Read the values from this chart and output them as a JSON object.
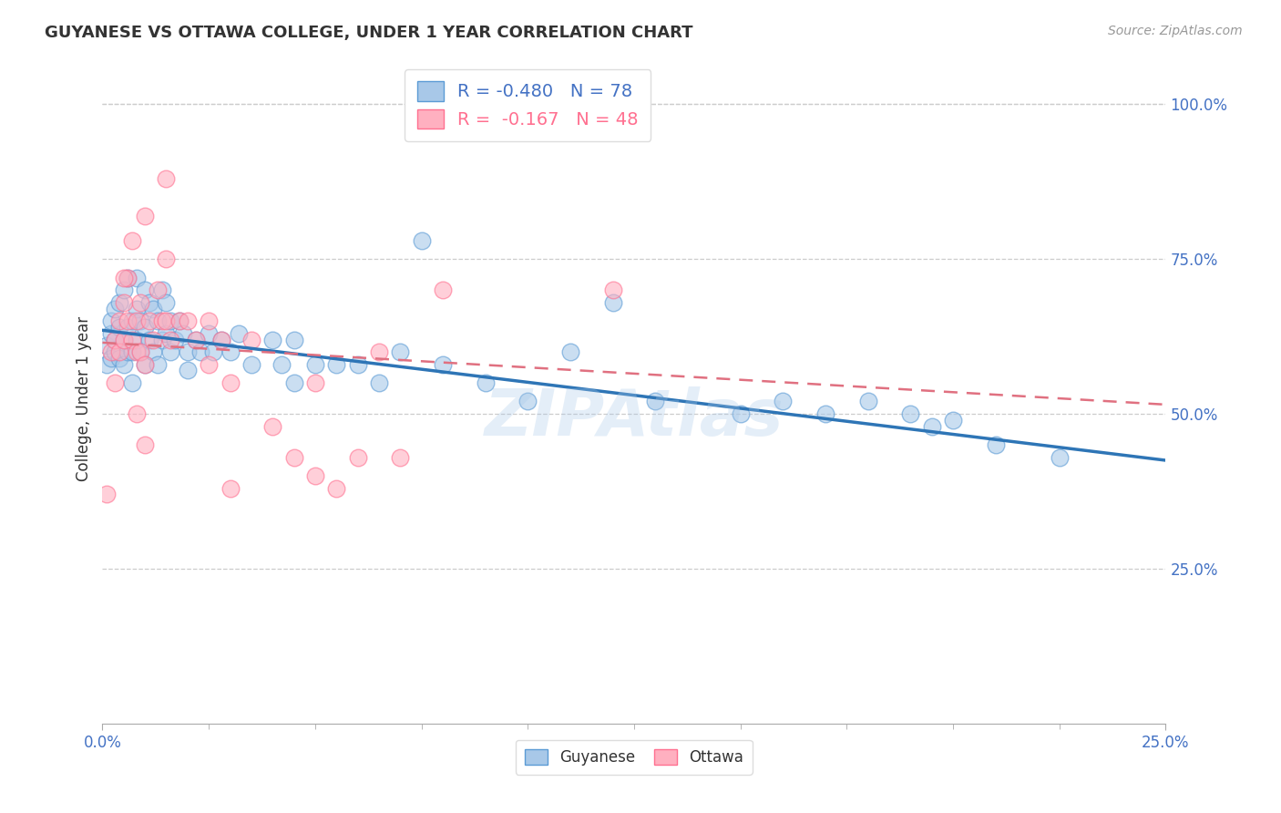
{
  "title": "GUYANESE VS OTTAWA COLLEGE, UNDER 1 YEAR CORRELATION CHART",
  "source": "Source: ZipAtlas.com",
  "ylabel": "College, Under 1 year",
  "legend_label1": "Guyanese",
  "legend_label2": "Ottawa",
  "R1": -0.48,
  "N1": 78,
  "R2": -0.167,
  "N2": 48,
  "color_blue": "#A8C8E8",
  "color_pink": "#FFB0C0",
  "color_blue_edge": "#5B9BD5",
  "color_pink_edge": "#FF7090",
  "color_blue_line": "#2E75B6",
  "color_pink_line": "#E07080",
  "xlim": [
    0.0,
    0.25
  ],
  "ylim": [
    0.0,
    1.05
  ],
  "xtick_left": 0.0,
  "xtick_right": 0.25,
  "xtick_left_label": "0.0%",
  "xtick_right_label": "25.0%",
  "yticks_right": [
    0.25,
    0.5,
    0.75,
    1.0
  ],
  "ytick_labels_right": [
    "25.0%",
    "50.0%",
    "75.0%",
    "100.0%"
  ],
  "background_color": "#FFFFFF",
  "grid_color": "#CCCCCC",
  "watermark": "ZIPAtlas",
  "title_color": "#333333",
  "source_color": "#999999",
  "axis_label_color": "#333333",
  "right_tick_color": "#4472C4",
  "line1_x0": 0.0,
  "line1_x1": 0.25,
  "line1_y0": 0.635,
  "line1_y1": 0.425,
  "line2_x0": 0.0,
  "line2_x1": 0.25,
  "line2_y0": 0.615,
  "line2_y1": 0.515,
  "blue_scatter_x": [
    0.001,
    0.001,
    0.002,
    0.002,
    0.002,
    0.003,
    0.003,
    0.003,
    0.004,
    0.004,
    0.004,
    0.005,
    0.005,
    0.005,
    0.006,
    0.006,
    0.006,
    0.007,
    0.007,
    0.007,
    0.008,
    0.008,
    0.008,
    0.009,
    0.009,
    0.01,
    0.01,
    0.01,
    0.011,
    0.011,
    0.012,
    0.012,
    0.013,
    0.013,
    0.014,
    0.014,
    0.015,
    0.015,
    0.016,
    0.016,
    0.017,
    0.018,
    0.019,
    0.02,
    0.02,
    0.022,
    0.023,
    0.025,
    0.026,
    0.028,
    0.03,
    0.032,
    0.035,
    0.04,
    0.042,
    0.045,
    0.05,
    0.06,
    0.065,
    0.075,
    0.08,
    0.09,
    0.1,
    0.11,
    0.13,
    0.15,
    0.17,
    0.19,
    0.21,
    0.225,
    0.195,
    0.045,
    0.055,
    0.07,
    0.12,
    0.16,
    0.18,
    0.2
  ],
  "blue_scatter_y": [
    0.61,
    0.58,
    0.63,
    0.59,
    0.65,
    0.62,
    0.6,
    0.67,
    0.64,
    0.59,
    0.68,
    0.62,
    0.58,
    0.7,
    0.64,
    0.6,
    0.72,
    0.65,
    0.6,
    0.55,
    0.67,
    0.62,
    0.72,
    0.65,
    0.6,
    0.7,
    0.64,
    0.58,
    0.68,
    0.62,
    0.67,
    0.6,
    0.65,
    0.58,
    0.7,
    0.62,
    0.68,
    0.63,
    0.65,
    0.6,
    0.62,
    0.65,
    0.63,
    0.6,
    0.57,
    0.62,
    0.6,
    0.63,
    0.6,
    0.62,
    0.6,
    0.63,
    0.58,
    0.62,
    0.58,
    0.62,
    0.58,
    0.58,
    0.55,
    0.78,
    0.58,
    0.55,
    0.52,
    0.6,
    0.52,
    0.5,
    0.5,
    0.5,
    0.45,
    0.43,
    0.48,
    0.55,
    0.58,
    0.6,
    0.68,
    0.52,
    0.52,
    0.49
  ],
  "pink_scatter_x": [
    0.001,
    0.002,
    0.003,
    0.003,
    0.004,
    0.004,
    0.005,
    0.005,
    0.006,
    0.006,
    0.007,
    0.007,
    0.008,
    0.008,
    0.009,
    0.009,
    0.01,
    0.01,
    0.011,
    0.012,
    0.013,
    0.014,
    0.015,
    0.015,
    0.016,
    0.018,
    0.02,
    0.022,
    0.025,
    0.028,
    0.03,
    0.035,
    0.04,
    0.045,
    0.05,
    0.06,
    0.07,
    0.08,
    0.015,
    0.01,
    0.008,
    0.005,
    0.12,
    0.025,
    0.03,
    0.05,
    0.065,
    0.055
  ],
  "pink_scatter_y": [
    0.37,
    0.6,
    0.62,
    0.55,
    0.65,
    0.6,
    0.68,
    0.62,
    0.65,
    0.72,
    0.62,
    0.78,
    0.65,
    0.6,
    0.68,
    0.6,
    0.58,
    0.82,
    0.65,
    0.62,
    0.7,
    0.65,
    0.65,
    0.75,
    0.62,
    0.65,
    0.65,
    0.62,
    0.65,
    0.62,
    0.55,
    0.62,
    0.48,
    0.43,
    0.55,
    0.43,
    0.43,
    0.7,
    0.88,
    0.45,
    0.5,
    0.72,
    0.7,
    0.58,
    0.38,
    0.4,
    0.6,
    0.38
  ]
}
